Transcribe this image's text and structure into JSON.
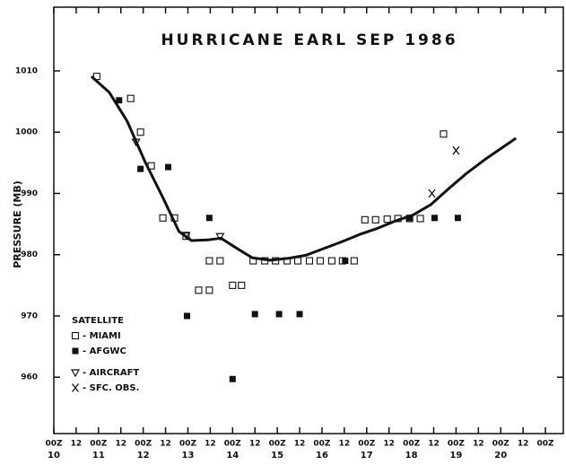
{
  "chart_data": {
    "type": "scatter",
    "title": "HURRICANE EARL SEP 1986",
    "y_label": "PRESSURE (MB)",
    "legend_title": "SATELLITE",
    "xlim": [
      10,
      21.4
    ],
    "ylim": [
      950.8,
      1020.4
    ],
    "xticks": [
      {
        "value": 10,
        "label": "00Z"
      },
      {
        "value": 10.5,
        "label": "12"
      },
      {
        "value": 11,
        "label": "00Z"
      },
      {
        "value": 11.5,
        "label": "12"
      },
      {
        "value": 12,
        "label": "00Z"
      },
      {
        "value": 12.5,
        "label": "12"
      },
      {
        "value": 13,
        "label": "00Z"
      },
      {
        "value": 13.5,
        "label": "12"
      },
      {
        "value": 14,
        "label": "00Z"
      },
      {
        "value": 14.5,
        "label": "12"
      },
      {
        "value": 15,
        "label": "00Z"
      },
      {
        "value": 15.5,
        "label": "12"
      },
      {
        "value": 16,
        "label": "00Z"
      },
      {
        "value": 16.5,
        "label": "12"
      },
      {
        "value": 17,
        "label": "00Z"
      },
      {
        "value": 17.5,
        "label": "12"
      },
      {
        "value": 18,
        "label": "00Z"
      },
      {
        "value": 18.5,
        "label": "12"
      },
      {
        "value": 19,
        "label": "00Z"
      },
      {
        "value": 19.5,
        "label": "12"
      },
      {
        "value": 20,
        "label": "00Z"
      },
      {
        "value": 20.5,
        "label": "12"
      },
      {
        "value": 21,
        "label": "00Z"
      }
    ],
    "xdays": [
      10,
      11,
      12,
      13,
      14,
      15,
      16,
      17,
      18,
      19,
      20
    ],
    "yticks": [
      960,
      970,
      980,
      990,
      1000,
      1010
    ],
    "series": [
      {
        "name": "- MIAMI",
        "marker": "open-square",
        "color": "#111",
        "x": [
          10.96,
          11.72,
          11.94,
          12.18,
          12.44,
          12.7,
          12.96,
          13.24,
          13.48,
          13.48,
          13.72,
          14.0,
          14.2,
          14.46,
          14.72,
          14.96,
          15.22,
          15.46,
          15.72,
          15.96,
          16.22,
          16.46,
          16.72,
          16.96,
          17.2,
          17.46,
          17.7,
          17.96,
          18.2,
          18.72
        ],
        "values": [
          1009.1,
          1005.5,
          1000,
          994.5,
          986,
          986,
          983,
          974.2,
          974.2,
          979,
          979,
          975,
          975,
          979,
          979,
          979,
          979,
          979,
          979,
          979,
          979,
          979,
          979,
          985.7,
          985.7,
          985.8,
          985.9,
          985.9,
          985.9,
          999.7
        ]
      },
      {
        "name": "- AFGWC",
        "marker": "filled-square",
        "color": "#111",
        "x": [
          11.46,
          11.94,
          12.56,
          12.98,
          13.48,
          14.0,
          14.5,
          15.04,
          15.5,
          16.52,
          17.96,
          18.52,
          19.04
        ],
        "values": [
          1005.2,
          994,
          994.3,
          970,
          986,
          959.7,
          970.3,
          970.3,
          970.3,
          979,
          986,
          986,
          986
        ]
      },
      {
        "name": "- AIRCRAFT",
        "marker": "triangle",
        "color": "#111",
        "x": [
          11.84,
          12.96,
          13.72
        ],
        "values": [
          998.4,
          983.2,
          983
        ]
      },
      {
        "name": "- SFC. OBS.",
        "marker": "x",
        "color": "#111",
        "x": [
          18.46,
          19.0
        ],
        "values": [
          990,
          997
        ]
      },
      {
        "marker": "line",
        "color": "#111",
        "x": [
          10.84,
          11.24,
          11.64,
          12.04,
          12.44,
          12.8,
          13.08,
          13.44,
          13.74,
          14.08,
          14.44,
          14.84,
          15.24,
          15.64,
          16.04,
          16.44,
          16.84,
          17.24,
          17.64,
          18.04,
          18.44,
          18.84,
          19.24,
          19.64,
          20.04,
          20.34
        ],
        "values": [
          1009.1,
          1006.5,
          1001.8,
          995.2,
          989.3,
          983.8,
          982.3,
          982.4,
          982.7,
          981.1,
          979.5,
          979.1,
          979.4,
          979.9,
          981,
          982.1,
          983.3,
          984.3,
          985.5,
          986.5,
          988.2,
          990.8,
          993.3,
          995.5,
          997.5,
          999
        ]
      }
    ]
  }
}
